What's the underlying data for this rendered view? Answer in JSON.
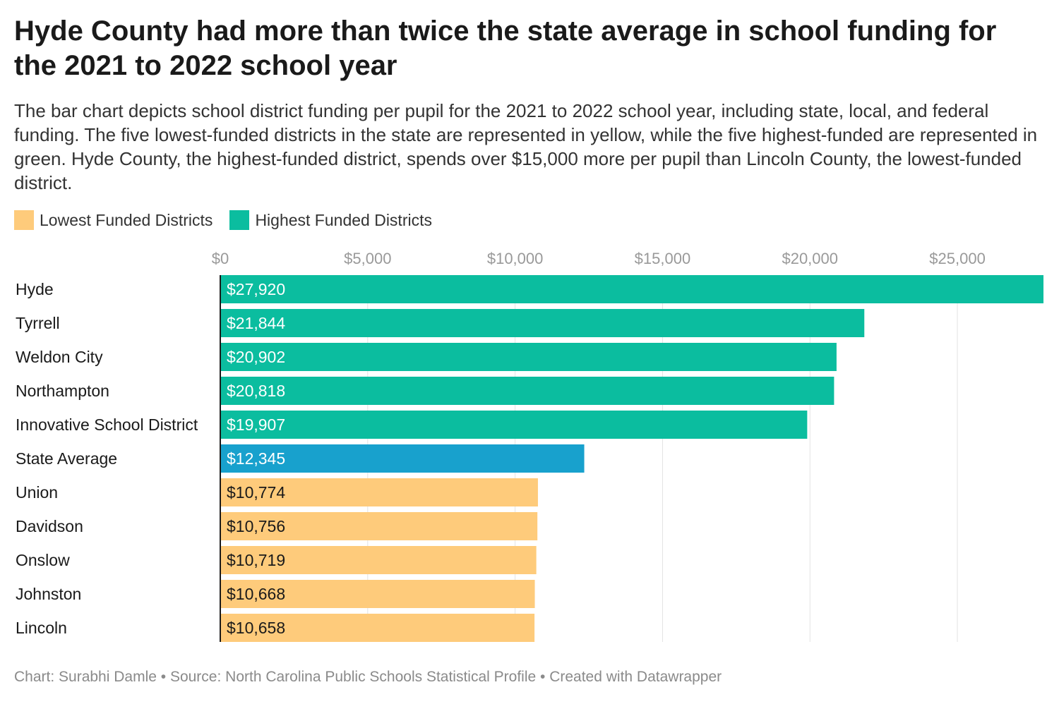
{
  "header": {
    "title": "Hyde County had more than twice the state average in school funding for the 2021 to 2022 school year",
    "subtitle": "The bar chart depicts school district funding per pupil for the 2021 to 2022 school year, including state, local, and federal funding. The five lowest-funded districts in the state are represented in yellow, while the five highest-funded are represented in green. Hyde County, the highest-funded district, spends over $15,000 more per pupil than Lincoln County, the lowest-funded district."
  },
  "legend": {
    "items": [
      {
        "label": "Lowest Funded Districts",
        "color": "#fecb7b"
      },
      {
        "label": "Highest Funded Districts",
        "color": "#0bbd9f"
      }
    ]
  },
  "colors": {
    "highest": "#0bbd9f",
    "average": "#18a1cd",
    "lowest": "#fecb7b",
    "gridline": "#e2e2e2",
    "axis": "#1a1a1a"
  },
  "chart_data": {
    "type": "bar",
    "orientation": "horizontal",
    "xlim": [
      0,
      27920
    ],
    "ticks": [
      0,
      5000,
      10000,
      15000,
      20000,
      25000
    ],
    "tick_labels": [
      "$0",
      "$5,000",
      "$10,000",
      "$15,000",
      "$20,000",
      "$25,000"
    ],
    "grid": true,
    "legend_position": "top-left",
    "categories": [
      "Hyde",
      "Tyrrell",
      "Weldon City",
      "Northampton",
      "Innovative School District",
      "State Average",
      "Union",
      "Davidson",
      "Onslow",
      "Johnston",
      "Lincoln"
    ],
    "values": [
      27920,
      21844,
      20902,
      20818,
      19907,
      12345,
      10774,
      10756,
      10719,
      10668,
      10658
    ],
    "value_labels": [
      "$27,920",
      "$21,844",
      "$20,902",
      "$20,818",
      "$19,907",
      "$12,345",
      "$10,774",
      "$10,756",
      "$10,719",
      "$10,668",
      "$10,658"
    ],
    "groups": [
      "highest",
      "highest",
      "highest",
      "highest",
      "highest",
      "average",
      "lowest",
      "lowest",
      "lowest",
      "lowest",
      "lowest"
    ]
  },
  "footer": {
    "credits": "Chart: Surabhi Damle • Source: North Carolina Public Schools Statistical Profile • Created with Datawrapper"
  }
}
